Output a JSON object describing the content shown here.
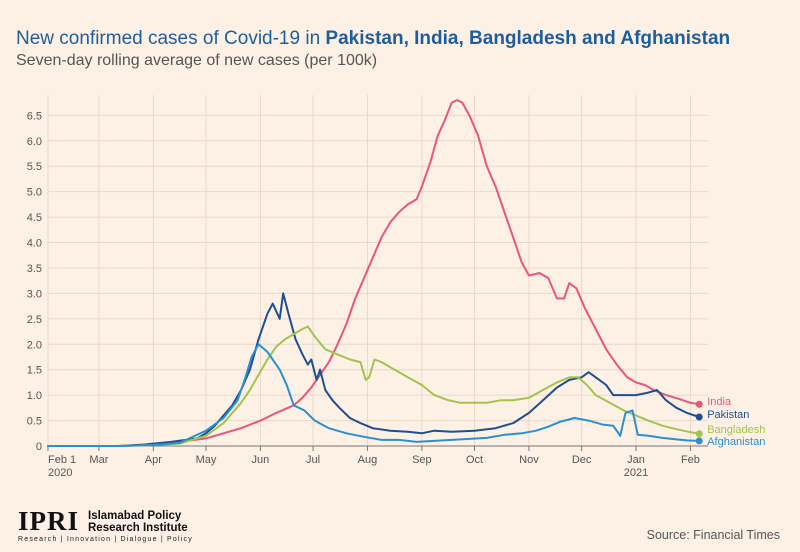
{
  "header": {
    "title_prefix": "New confirmed cases of Covid-19 in ",
    "title_countries": "Pakistan, India, Bangladesh and Afghanistan",
    "subtitle": "Seven-day rolling average of new cases (per 100k)"
  },
  "footer": {
    "logo_mark": "IPRI",
    "logo_name_line1": "Islamabad Policy",
    "logo_name_line2": "Research Institute",
    "logo_tagline": "Research | Innovation | Dialogue | Policy",
    "source": "Source: Financial Times"
  },
  "chart_data": {
    "type": "line",
    "title": "New confirmed cases of Covid-19 in Pakistan, India, Bangladesh and Afghanistan",
    "subtitle": "Seven-day rolling average of new cases (per 100k)",
    "x_ticks": [
      {
        "day": 0,
        "label": "Feb 1",
        "sublabel": "2020"
      },
      {
        "day": 29,
        "label": "Mar"
      },
      {
        "day": 60,
        "label": "Apr"
      },
      {
        "day": 90,
        "label": "May"
      },
      {
        "day": 121,
        "label": "Jun"
      },
      {
        "day": 151,
        "label": "Jul"
      },
      {
        "day": 182,
        "label": "Aug"
      },
      {
        "day": 213,
        "label": "Sep"
      },
      {
        "day": 243,
        "label": "Oct"
      },
      {
        "day": 274,
        "label": "Nov"
      },
      {
        "day": 304,
        "label": "Dec"
      },
      {
        "day": 335,
        "label": "Jan",
        "sublabel": "2021"
      },
      {
        "day": 366,
        "label": "Feb"
      }
    ],
    "xlim": [
      0,
      376
    ],
    "ylim": [
      0,
      6.9
    ],
    "y_ticks": [
      0,
      0.5,
      1.0,
      1.5,
      2.0,
      2.5,
      3.0,
      3.5,
      4.0,
      4.5,
      5.0,
      5.5,
      6.0,
      6.5
    ],
    "y_tick_labels": [
      "0",
      "0.5",
      "1.0",
      "1.5",
      "2.0",
      "2.5",
      "3.0",
      "3.5",
      "4.0",
      "4.5",
      "5.0",
      "5.5",
      "6.0",
      "6.5"
    ],
    "grid": true,
    "legend": "end-of-line labels",
    "series": [
      {
        "name": "India",
        "color": "#e8577a",
        "points": [
          [
            0,
            0
          ],
          [
            40,
            0
          ],
          [
            60,
            0.02
          ],
          [
            75,
            0.08
          ],
          [
            90,
            0.15
          ],
          [
            100,
            0.25
          ],
          [
            110,
            0.35
          ],
          [
            121,
            0.5
          ],
          [
            130,
            0.65
          ],
          [
            140,
            0.8
          ],
          [
            145,
            0.95
          ],
          [
            150,
            1.15
          ],
          [
            155,
            1.4
          ],
          [
            160,
            1.65
          ],
          [
            165,
            2.0
          ],
          [
            170,
            2.4
          ],
          [
            175,
            2.9
          ],
          [
            180,
            3.3
          ],
          [
            185,
            3.7
          ],
          [
            190,
            4.1
          ],
          [
            195,
            4.4
          ],
          [
            200,
            4.6
          ],
          [
            205,
            4.75
          ],
          [
            210,
            4.85
          ],
          [
            213,
            5.1
          ],
          [
            218,
            5.6
          ],
          [
            222,
            6.1
          ],
          [
            226,
            6.4
          ],
          [
            230,
            6.75
          ],
          [
            233,
            6.8
          ],
          [
            236,
            6.75
          ],
          [
            240,
            6.5
          ],
          [
            245,
            6.1
          ],
          [
            250,
            5.5
          ],
          [
            255,
            5.1
          ],
          [
            260,
            4.6
          ],
          [
            265,
            4.1
          ],
          [
            270,
            3.6
          ],
          [
            274,
            3.35
          ],
          [
            280,
            3.4
          ],
          [
            285,
            3.3
          ],
          [
            290,
            2.9
          ],
          [
            294,
            2.9
          ],
          [
            297,
            3.2
          ],
          [
            301,
            3.1
          ],
          [
            306,
            2.7
          ],
          [
            312,
            2.3
          ],
          [
            318,
            1.9
          ],
          [
            324,
            1.6
          ],
          [
            330,
            1.35
          ],
          [
            335,
            1.25
          ],
          [
            340,
            1.2
          ],
          [
            345,
            1.1
          ],
          [
            352,
            1.0
          ],
          [
            360,
            0.92
          ],
          [
            366,
            0.85
          ],
          [
            371,
            0.82
          ]
        ],
        "end_value": 0.82
      },
      {
        "name": "Pakistan",
        "color": "#1d4f91",
        "points": [
          [
            0,
            0
          ],
          [
            40,
            0
          ],
          [
            55,
            0.03
          ],
          [
            70,
            0.08
          ],
          [
            85,
            0.15
          ],
          [
            90,
            0.25
          ],
          [
            95,
            0.4
          ],
          [
            100,
            0.6
          ],
          [
            105,
            0.8
          ],
          [
            110,
            1.1
          ],
          [
            115,
            1.5
          ],
          [
            120,
            2.1
          ],
          [
            125,
            2.6
          ],
          [
            128,
            2.8
          ],
          [
            132,
            2.5
          ],
          [
            134,
            3.0
          ],
          [
            137,
            2.6
          ],
          [
            141,
            2.1
          ],
          [
            145,
            1.8
          ],
          [
            148,
            1.6
          ],
          [
            150,
            1.7
          ],
          [
            153,
            1.3
          ],
          [
            155,
            1.5
          ],
          [
            158,
            1.1
          ],
          [
            162,
            0.9
          ],
          [
            166,
            0.75
          ],
          [
            172,
            0.55
          ],
          [
            178,
            0.45
          ],
          [
            185,
            0.35
          ],
          [
            195,
            0.3
          ],
          [
            205,
            0.28
          ],
          [
            213,
            0.25
          ],
          [
            220,
            0.3
          ],
          [
            230,
            0.28
          ],
          [
            243,
            0.3
          ],
          [
            255,
            0.35
          ],
          [
            265,
            0.45
          ],
          [
            274,
            0.65
          ],
          [
            282,
            0.9
          ],
          [
            290,
            1.15
          ],
          [
            297,
            1.3
          ],
          [
            304,
            1.35
          ],
          [
            308,
            1.45
          ],
          [
            312,
            1.35
          ],
          [
            318,
            1.2
          ],
          [
            322,
            1.0
          ],
          [
            328,
            1.0
          ],
          [
            335,
            1.0
          ],
          [
            342,
            1.05
          ],
          [
            347,
            1.1
          ],
          [
            352,
            0.9
          ],
          [
            358,
            0.75
          ],
          [
            364,
            0.65
          ],
          [
            371,
            0.57
          ]
        ],
        "end_value": 0.57
      },
      {
        "name": "Bangladesh",
        "color": "#a3c24e",
        "points": [
          [
            0,
            0
          ],
          [
            40,
            0
          ],
          [
            60,
            0.02
          ],
          [
            75,
            0.05
          ],
          [
            90,
            0.2
          ],
          [
            100,
            0.45
          ],
          [
            110,
            0.85
          ],
          [
            115,
            1.1
          ],
          [
            120,
            1.4
          ],
          [
            125,
            1.7
          ],
          [
            130,
            1.95
          ],
          [
            135,
            2.1
          ],
          [
            140,
            2.2
          ],
          [
            145,
            2.3
          ],
          [
            148,
            2.35
          ],
          [
            152,
            2.15
          ],
          [
            158,
            1.9
          ],
          [
            165,
            1.8
          ],
          [
            172,
            1.7
          ],
          [
            178,
            1.65
          ],
          [
            181,
            1.3
          ],
          [
            183,
            1.35
          ],
          [
            186,
            1.7
          ],
          [
            190,
            1.65
          ],
          [
            195,
            1.55
          ],
          [
            200,
            1.45
          ],
          [
            205,
            1.35
          ],
          [
            213,
            1.2
          ],
          [
            220,
            1.0
          ],
          [
            228,
            0.9
          ],
          [
            235,
            0.85
          ],
          [
            243,
            0.85
          ],
          [
            250,
            0.85
          ],
          [
            258,
            0.9
          ],
          [
            265,
            0.9
          ],
          [
            274,
            0.95
          ],
          [
            282,
            1.1
          ],
          [
            290,
            1.25
          ],
          [
            297,
            1.35
          ],
          [
            302,
            1.35
          ],
          [
            307,
            1.2
          ],
          [
            312,
            1.0
          ],
          [
            320,
            0.85
          ],
          [
            328,
            0.7
          ],
          [
            335,
            0.6
          ],
          [
            342,
            0.5
          ],
          [
            350,
            0.4
          ],
          [
            358,
            0.33
          ],
          [
            365,
            0.28
          ],
          [
            371,
            0.24
          ]
        ],
        "end_value": 0.24
      },
      {
        "name": "Afghanistan",
        "color": "#2b8fd0",
        "points": [
          [
            0,
            0
          ],
          [
            40,
            0
          ],
          [
            60,
            0.02
          ],
          [
            75,
            0.06
          ],
          [
            90,
            0.3
          ],
          [
            100,
            0.55
          ],
          [
            108,
            0.9
          ],
          [
            112,
            1.3
          ],
          [
            116,
            1.75
          ],
          [
            120,
            2.0
          ],
          [
            125,
            1.85
          ],
          [
            128,
            1.7
          ],
          [
            132,
            1.5
          ],
          [
            136,
            1.2
          ],
          [
            140,
            0.8
          ],
          [
            146,
            0.7
          ],
          [
            152,
            0.5
          ],
          [
            160,
            0.35
          ],
          [
            170,
            0.25
          ],
          [
            180,
            0.18
          ],
          [
            190,
            0.12
          ],
          [
            200,
            0.12
          ],
          [
            210,
            0.08
          ],
          [
            220,
            0.1
          ],
          [
            230,
            0.12
          ],
          [
            240,
            0.14
          ],
          [
            250,
            0.16
          ],
          [
            260,
            0.22
          ],
          [
            270,
            0.25
          ],
          [
            278,
            0.3
          ],
          [
            285,
            0.38
          ],
          [
            292,
            0.48
          ],
          [
            300,
            0.55
          ],
          [
            308,
            0.5
          ],
          [
            316,
            0.42
          ],
          [
            322,
            0.4
          ],
          [
            326,
            0.2
          ],
          [
            329,
            0.65
          ],
          [
            333,
            0.7
          ],
          [
            336,
            0.22
          ],
          [
            342,
            0.2
          ],
          [
            350,
            0.16
          ],
          [
            358,
            0.13
          ],
          [
            364,
            0.11
          ],
          [
            371,
            0.1
          ]
        ],
        "end_value": 0.1
      }
    ]
  }
}
